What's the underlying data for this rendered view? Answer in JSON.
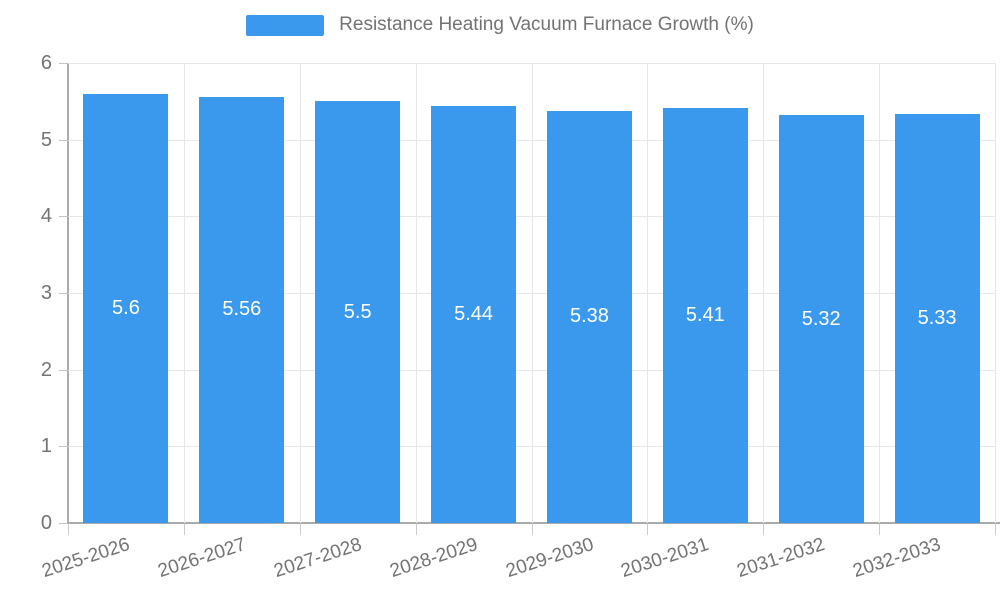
{
  "legend": {
    "label": "Resistance Heating Vacuum Furnace Growth (%)",
    "swatch_color": "#3a99ec"
  },
  "chart_data": {
    "type": "bar",
    "title": "Resistance Heating Vacuum Furnace Growth (%)",
    "categories": [
      "2025-2026",
      "2026-2027",
      "2027-2028",
      "2028-2029",
      "2029-2030",
      "2030-2031",
      "2031-2032",
      "2032-2033"
    ],
    "values": [
      5.6,
      5.56,
      5.5,
      5.44,
      5.38,
      5.41,
      5.32,
      5.33
    ],
    "bar_labels": [
      "5.6",
      "5.56",
      "5.5",
      "5.44",
      "5.38",
      "5.41",
      "5.32",
      "5.33"
    ],
    "xlabel": "",
    "ylabel": "",
    "ylim": [
      0,
      6
    ],
    "yticks": [
      0,
      1,
      2,
      3,
      4,
      5,
      6
    ],
    "grid": true,
    "legend_position": "top",
    "bar_color": "#3a99ec",
    "bar_label_color": "#ffffff",
    "axis_text_color": "#737373",
    "gridline_color": "#e6e6e6",
    "axis_line_color": "#ababab"
  }
}
